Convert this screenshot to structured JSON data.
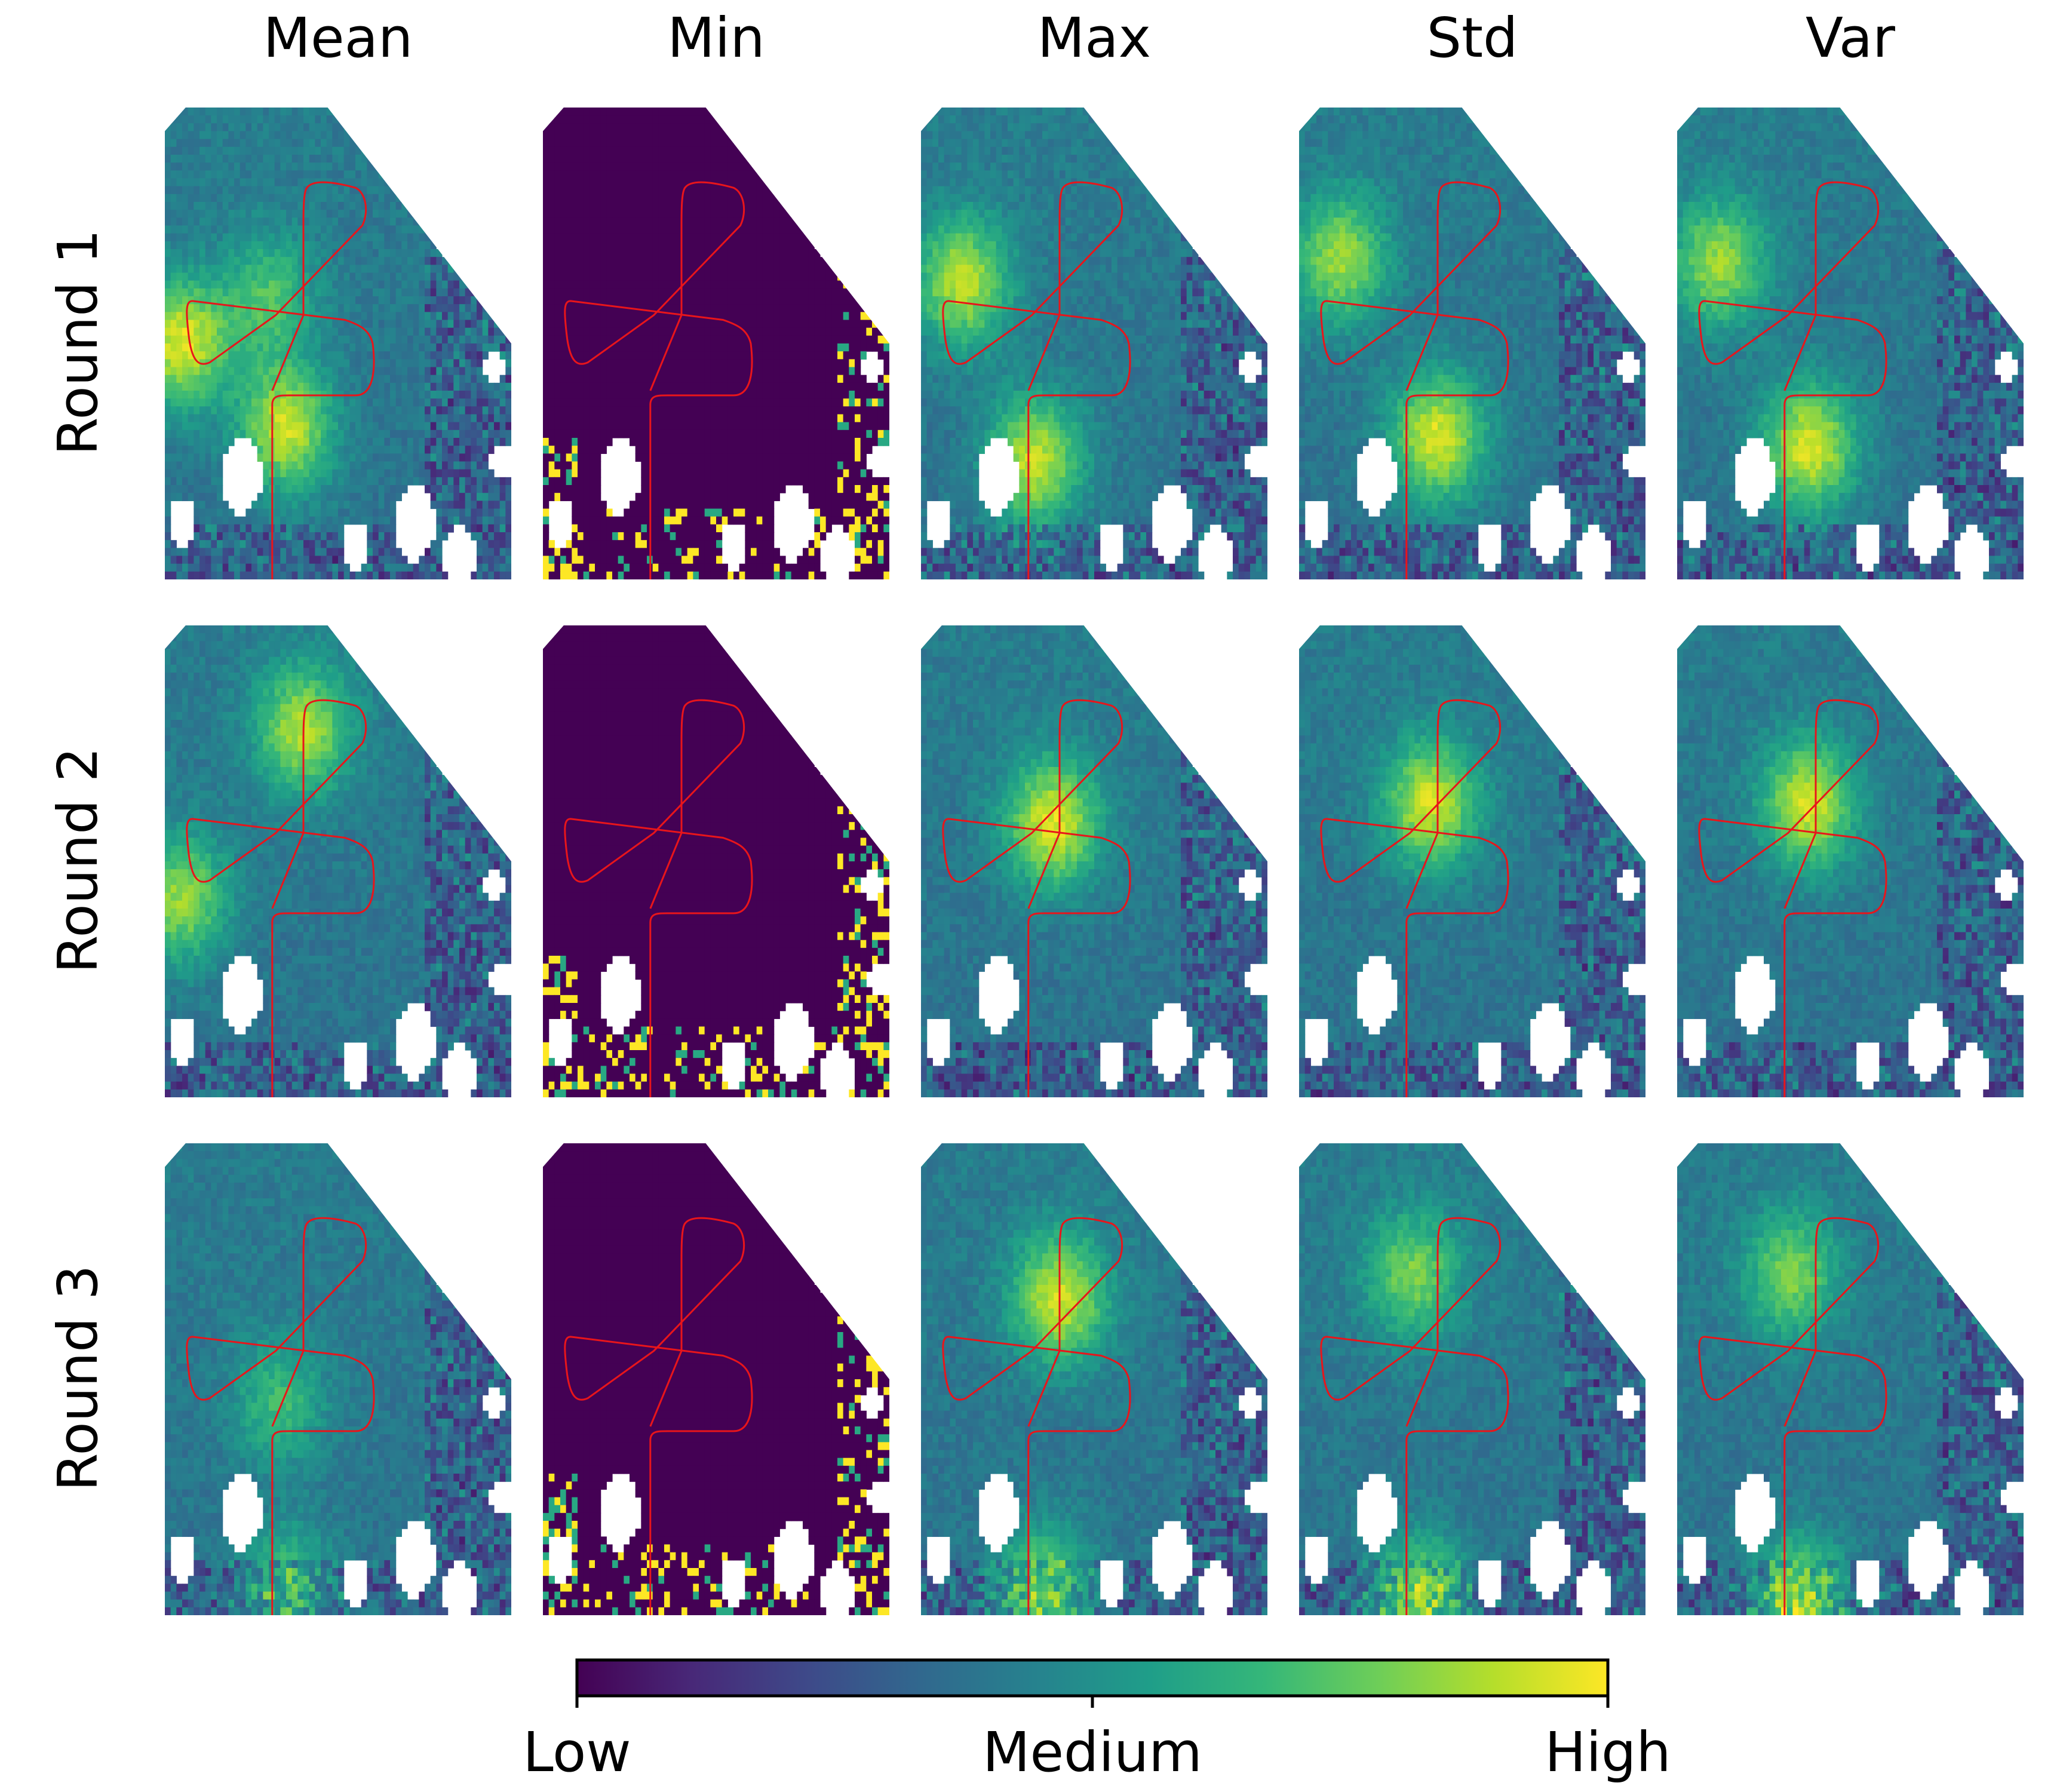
{
  "chart_data": {
    "type": "heatmap",
    "colormap": "viridis",
    "columns": [
      "Mean",
      "Min",
      "Max",
      "Std",
      "Var"
    ],
    "rows": [
      "Round 1",
      "Round 2",
      "Round 3"
    ],
    "hotspots": {
      "Round 1": {
        "Mean": [
          {
            "x": 0.05,
            "y": 0.5,
            "w": 1.0
          },
          {
            "x": 0.35,
            "y": 0.68,
            "w": 0.95
          },
          {
            "x": 0.3,
            "y": 0.4,
            "w": 0.55
          }
        ],
        "Max": [
          {
            "x": 0.12,
            "y": 0.37,
            "w": 0.9
          },
          {
            "x": 0.33,
            "y": 0.75,
            "w": 0.95
          }
        ],
        "Std": [
          {
            "x": 0.12,
            "y": 0.32,
            "w": 0.8
          },
          {
            "x": 0.4,
            "y": 0.7,
            "w": 1.0
          }
        ],
        "Var": [
          {
            "x": 0.12,
            "y": 0.33,
            "w": 0.8
          },
          {
            "x": 0.38,
            "y": 0.72,
            "w": 1.0
          }
        ]
      },
      "Round 2": {
        "Mean": [
          {
            "x": 0.4,
            "y": 0.22,
            "w": 0.85
          },
          {
            "x": 0.05,
            "y": 0.58,
            "w": 0.8
          }
        ],
        "Max": [
          {
            "x": 0.38,
            "y": 0.42,
            "w": 1.0
          }
        ],
        "Std": [
          {
            "x": 0.38,
            "y": 0.38,
            "w": 0.95
          }
        ],
        "Var": [
          {
            "x": 0.38,
            "y": 0.38,
            "w": 0.95
          }
        ]
      },
      "Round 3": {
        "Mean": [
          {
            "x": 0.33,
            "y": 0.55,
            "w": 0.5
          },
          {
            "x": 0.35,
            "y": 0.95,
            "w": 0.65
          }
        ],
        "Max": [
          {
            "x": 0.4,
            "y": 0.33,
            "w": 0.95
          },
          {
            "x": 0.35,
            "y": 0.95,
            "w": 0.85
          }
        ],
        "Std": [
          {
            "x": 0.33,
            "y": 0.28,
            "w": 0.7
          },
          {
            "x": 0.35,
            "y": 0.98,
            "w": 1.0
          }
        ],
        "Var": [
          {
            "x": 0.33,
            "y": 0.28,
            "w": 0.7
          },
          {
            "x": 0.35,
            "y": 0.98,
            "w": 1.0
          }
        ]
      }
    },
    "colorbar": {
      "ticks": [
        "Low",
        "Medium",
        "High"
      ]
    },
    "overlay": {
      "description": "flight path",
      "color": "#e8151b"
    }
  },
  "colors": {
    "viridis_stops": [
      "#440154",
      "#482878",
      "#3e4989",
      "#31688e",
      "#26828e",
      "#1f9e89",
      "#35b779",
      "#6ece58",
      "#b5de2b",
      "#fde725"
    ],
    "path": "#e8151b",
    "background": "#ffffff"
  }
}
